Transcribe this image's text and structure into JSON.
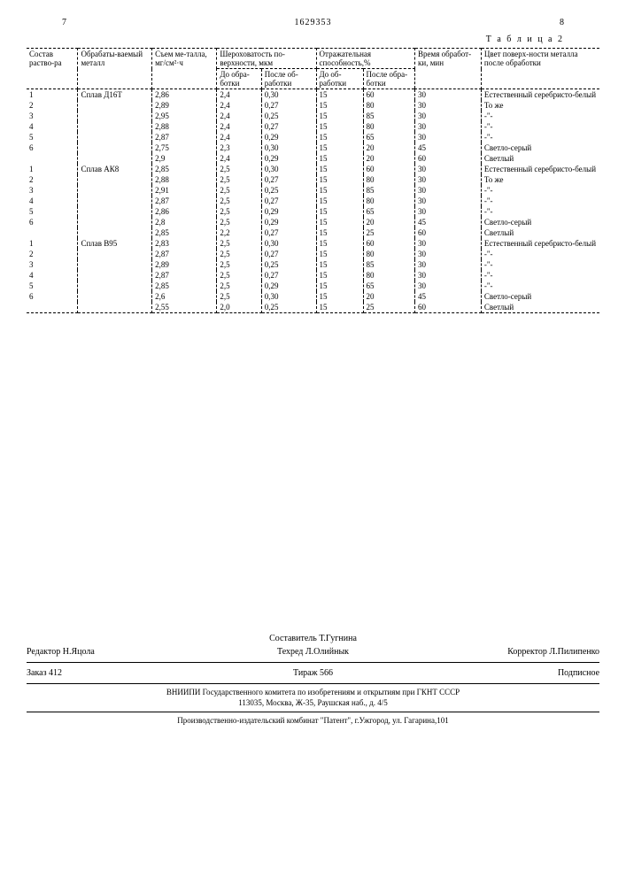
{
  "header": {
    "page_left": "7",
    "doc_number": "1629353",
    "page_right": "8"
  },
  "table": {
    "caption": "Т а б л и ц а  2",
    "columns": {
      "c1": "Состав раство-ра",
      "c2": "Обрабаты-ваемый металл",
      "c3": "Съем ме-талла, мг/см²·ч",
      "c4": "Шероховатость по-верхности, мкм",
      "c4a": "До обра-ботки",
      "c4b": "После об-работки",
      "c5": "Отражательная способность,%",
      "c5a": "До об-работки",
      "c5b": "После обра-ботки",
      "c6": "Время обработ-ки, мин",
      "c7": "Цвет поверх-ности металла после обработки"
    },
    "rows": [
      {
        "n": "1",
        "alloy": "Сплав Д16Т",
        "v1": "2,86",
        "v2": "2,4",
        "v3": "0,30",
        "v4": "15",
        "v5": "60",
        "v6": "30",
        "color": "Естественный серебристо-белый"
      },
      {
        "n": "2",
        "alloy": "",
        "v1": "2,89",
        "v2": "2,4",
        "v3": "0,27",
        "v4": "15",
        "v5": "80",
        "v6": "30",
        "color": "То же"
      },
      {
        "n": "3",
        "alloy": "",
        "v1": "2,95",
        "v2": "2,4",
        "v3": "0,25",
        "v4": "15",
        "v5": "85",
        "v6": "30",
        "color": "-\"-"
      },
      {
        "n": "4",
        "alloy": "",
        "v1": "2,88",
        "v2": "2,4",
        "v3": "0,27",
        "v4": "15",
        "v5": "80",
        "v6": "30",
        "color": "-\"-"
      },
      {
        "n": "5",
        "alloy": "",
        "v1": "2,87",
        "v2": "2,4",
        "v3": "0,29",
        "v4": "15",
        "v5": "65",
        "v6": "30",
        "color": "-\"-"
      },
      {
        "n": "6",
        "alloy": "",
        "v1": "2,75",
        "v2": "2,3",
        "v3": "0,30",
        "v4": "15",
        "v5": "20",
        "v6": "45",
        "color": "Светло-серый"
      },
      {
        "n": "",
        "alloy": "",
        "v1": "2,9",
        "v2": "2,4",
        "v3": "0,29",
        "v4": "15",
        "v5": "20",
        "v6": "60",
        "color": "Светлый"
      },
      {
        "n": "1",
        "alloy": "Сплав АК8",
        "v1": "2,85",
        "v2": "2,5",
        "v3": "0,30",
        "v4": "15",
        "v5": "60",
        "v6": "30",
        "color": "Естественный серебристо-белый"
      },
      {
        "n": "2",
        "alloy": "",
        "v1": "2,88",
        "v2": "2,5",
        "v3": "0,27",
        "v4": "15",
        "v5": "80",
        "v6": "30",
        "color": "То же"
      },
      {
        "n": "3",
        "alloy": "",
        "v1": "2,91",
        "v2": "2,5",
        "v3": "0,25",
        "v4": "15",
        "v5": "85",
        "v6": "30",
        "color": "-\"-"
      },
      {
        "n": "4",
        "alloy": "",
        "v1": "2,87",
        "v2": "2,5",
        "v3": "0,27",
        "v4": "15",
        "v5": "80",
        "v6": "30",
        "color": "-\"-"
      },
      {
        "n": "5",
        "alloy": "",
        "v1": "2,86",
        "v2": "2,5",
        "v3": "0,29",
        "v4": "15",
        "v5": "65",
        "v6": "30",
        "color": "-\"-"
      },
      {
        "n": "6",
        "alloy": "",
        "v1": "2,8",
        "v2": "2,5",
        "v3": "0,29",
        "v4": "15",
        "v5": "20",
        "v6": "45",
        "color": "Светло-серый"
      },
      {
        "n": "",
        "alloy": "",
        "v1": "2,85",
        "v2": "2,2",
        "v3": "0,27",
        "v4": "15",
        "v5": "25",
        "v6": "60",
        "color": "Светлый"
      },
      {
        "n": "1",
        "alloy": "Сплав В95",
        "v1": "2,83",
        "v2": "2,5",
        "v3": "0,30",
        "v4": "15",
        "v5": "60",
        "v6": "30",
        "color": "Естественный серебристо-белый"
      },
      {
        "n": "2",
        "alloy": "",
        "v1": "2,87",
        "v2": "2,5",
        "v3": "0,27",
        "v4": "15",
        "v5": "80",
        "v6": "30",
        "color": "-\"-"
      },
      {
        "n": "3",
        "alloy": "",
        "v1": "2,89",
        "v2": "2,5",
        "v3": "0,25",
        "v4": "15",
        "v5": "85",
        "v6": "30",
        "color": "-\"-"
      },
      {
        "n": "4",
        "alloy": "",
        "v1": "2,87",
        "v2": "2,5",
        "v3": "0,27",
        "v4": "15",
        "v5": "80",
        "v6": "30",
        "color": "-\"-"
      },
      {
        "n": "5",
        "alloy": "",
        "v1": "2,85",
        "v2": "2,5",
        "v3": "0,29",
        "v4": "15",
        "v5": "65",
        "v6": "30",
        "color": "-\"-"
      },
      {
        "n": "6",
        "alloy": "",
        "v1": "2,6",
        "v2": "2,5",
        "v3": "0,30",
        "v4": "15",
        "v5": "20",
        "v6": "45",
        "color": "Светло-серый"
      },
      {
        "n": "",
        "alloy": "",
        "v1": "2,55",
        "v2": "2,0",
        "v3": "0,25",
        "v4": "15",
        "v5": "25",
        "v6": "60",
        "color": "Светлый"
      }
    ]
  },
  "footer": {
    "compiler": "Составитель Т.Гугнина",
    "editor": "Редактор Н.Яцола",
    "tech": "Техред Л.Олийнык",
    "corrector": "Корректор Л.Пилипенко",
    "order": "Заказ 412",
    "tiraz": "Тираж 566",
    "subscription": "Подписное",
    "org1": "ВНИИПИ Государственного комитета по изобретениям и открытиям при ГКНТ СССР",
    "org1addr": "113035, Москва, Ж-35, Раушская наб., д. 4/5",
    "org2": "Производственно-издательский комбинат \"Патент\", г.Ужгород, ул. Гагарина,101"
  }
}
